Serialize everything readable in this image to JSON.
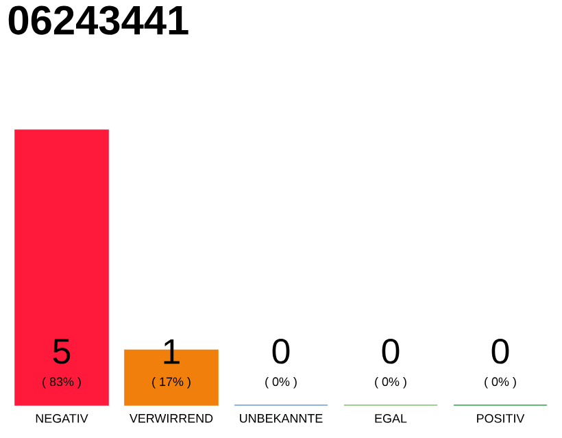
{
  "chart_data": {
    "type": "bar",
    "title": "06243441",
    "categories": [
      "NEGATIV",
      "VERWIRREND",
      "UNBEKANNTE",
      "EGAL",
      "POSITIV"
    ],
    "values": [
      5,
      1,
      0,
      0,
      0
    ],
    "colors": [
      "#ff1a3c",
      "#f07f0c",
      "#6a9be8",
      "#7cc46a",
      "#2ea34a"
    ],
    "value_labels": [
      "5",
      "1",
      "0",
      "0",
      "0"
    ],
    "annotations": [
      "( 83% )",
      "( 17% )",
      "( 0% )",
      "( 0% )",
      "( 0% )"
    ]
  }
}
